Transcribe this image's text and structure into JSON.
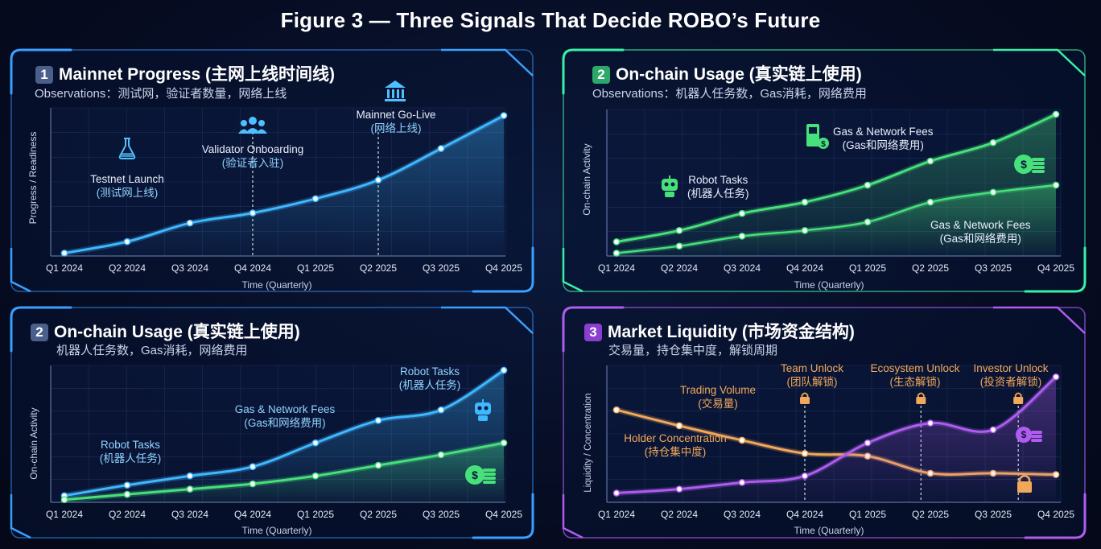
{
  "figure_title": "Figure 3 — Three Signals That Decide ROBO’s Future",
  "colors": {
    "blue": "#3fb8ff",
    "green": "#47e07a",
    "purple": "#b05cf0",
    "orange": "#f2a85a",
    "green_border": "#3ee6a0",
    "purple_border": "#a95cf5",
    "blue_border": "#2f7fd8"
  },
  "icons": {
    "testnet": "flask-icon",
    "validator": "users-icon",
    "mainnet": "bank-icon",
    "fuel": "fuel-pump-icon",
    "coins": "dollar-coins-icon",
    "robot": "robot-icon",
    "lock": "lock-icon"
  },
  "chart_data": [
    {
      "type": "line",
      "badge": "1",
      "title": "Mainnet Progress (主网上线时间线)",
      "subtitle": "Observations：测试网，验证者数量，网络上线",
      "xlabel": "Time (Quarterly)",
      "ylabel": "Progress / Readiness",
      "categories": [
        "Q1 2024",
        "Q2 2024",
        "Q3 2024",
        "Q4 2024",
        "Q1 2025",
        "Q2 2025",
        "Q3 2025",
        "Q4 2025"
      ],
      "ylim": [
        0,
        100
      ],
      "series": [
        {
          "values": [
            2,
            10,
            23,
            30,
            40,
            53,
            75,
            98
          ]
        }
      ],
      "annotations": [
        {
          "label": "Testnet Launch",
          "label_cn": "(测试网上线)"
        },
        {
          "label": "Validator Onboarding",
          "label_cn": "(验证者入驻)"
        },
        {
          "label": "Mainnet Go-Live",
          "label_cn": "(网络上线)"
        }
      ]
    },
    {
      "type": "line",
      "badge": "2",
      "title": "On-chain Usage (真实链上使用)",
      "subtitle": "Observations：机器人任务数，Gas消耗，网络费用",
      "xlabel": "Time (Quarterly)",
      "ylabel": "On-chain Activity",
      "categories": [
        "Q1 2024",
        "Q2 2024",
        "Q3 2024",
        "Q4 2024",
        "Q1 2025",
        "Q2 2025",
        "Q3 2025",
        "Q4 2025"
      ],
      "ylim": [
        0,
        100
      ],
      "series": [
        {
          "values": [
            10,
            18,
            30,
            38,
            50,
            67,
            80,
            100
          ]
        },
        {
          "values": [
            2,
            7,
            14,
            18,
            24,
            38,
            45,
            50
          ]
        }
      ],
      "annotations": [
        {
          "label": "Robot Tasks",
          "label_cn": "(机器人任务)"
        },
        {
          "label": "Gas & Network Fees",
          "label_cn": "(Gas和网络费用)"
        },
        {
          "label": "Gas & Network Fees",
          "label_cn": "(Gas和网络费用)"
        }
      ]
    },
    {
      "type": "line",
      "badge": "2",
      "title": "On-chain Usage (真实链上使用)",
      "subtitle": "机器人任务数，Gas消耗，网络费用",
      "xlabel": "Time (Quarterly)",
      "ylabel": "On-chain Activity",
      "categories": [
        "Q1 2024",
        "Q2 2024",
        "Q3 2024",
        "Q4 2024",
        "Q1 2025",
        "Q2 2025",
        "Q3 2025",
        "Q4 2025"
      ],
      "ylim": [
        0,
        100
      ],
      "series": [
        {
          "values": [
            5,
            13,
            20,
            27,
            45,
            62,
            70,
            100
          ]
        },
        {
          "values": [
            2,
            6,
            10,
            14,
            20,
            28,
            36,
            45
          ]
        }
      ],
      "annotations": [
        {
          "label": "Robot Tasks",
          "label_cn": "(机器人任务)"
        },
        {
          "label": "Gas & Network Fees",
          "label_cn": "(Gas和网络费用)"
        },
        {
          "label": "Robot Tasks",
          "label_cn": "(机器人任务)"
        }
      ]
    },
    {
      "type": "line",
      "badge": "3",
      "title": "Market Liquidity (市场资金结构)",
      "subtitle": "交易量，持仓集中度，解锁周期",
      "xlabel": "Time (Quarterly)",
      "ylabel": "Liquidity / Concentration",
      "categories": [
        "Q1 2024",
        "Q2 2024",
        "Q3 2024",
        "Q4 2024",
        "Q1 2025",
        "Q2 2025",
        "Q3 2025",
        "Q4 2025"
      ],
      "ylim": [
        0,
        100
      ],
      "series": [
        {
          "name": "Trading Volume",
          "values": [
            70,
            58,
            47,
            37,
            35,
            22,
            22,
            21
          ]
        },
        {
          "name": "Holder Concentration",
          "values": [
            7,
            10,
            15,
            20,
            45,
            60,
            55,
            95
          ]
        }
      ],
      "annotations": [
        {
          "label": "Trading Volume",
          "label_cn": "(交易量)"
        },
        {
          "label": "Holder Concentration",
          "label_cn": "(持仓集中度)"
        },
        {
          "label": "Team Unlock",
          "label_cn": "(团队解锁)"
        },
        {
          "label": "Ecosystem Unlock",
          "label_cn": "(生态解锁)"
        },
        {
          "label": "Investor Unlock",
          "label_cn": "(投资者解锁)"
        }
      ]
    }
  ]
}
